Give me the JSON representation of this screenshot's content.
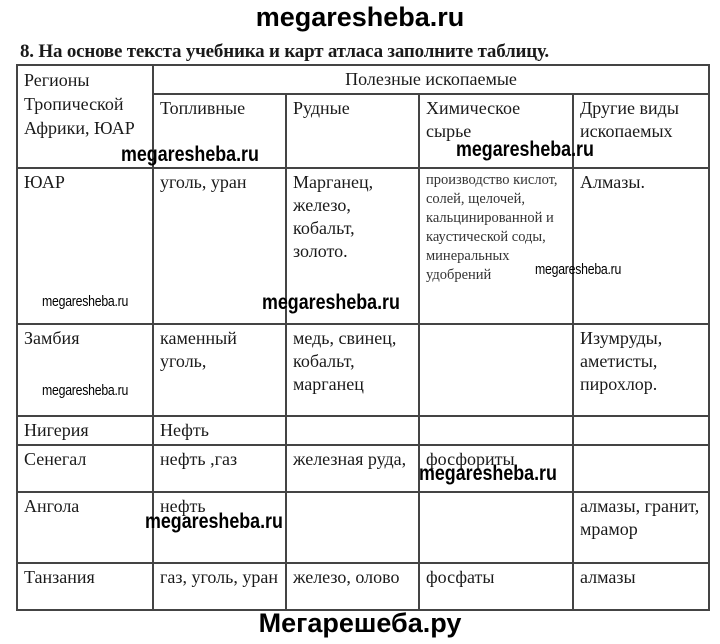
{
  "watermarks": {
    "top": "megaresheba.ru",
    "bottom": "Мегарешеба.ру",
    "inline": "megaresheba.ru"
  },
  "task": "8. На основе текста учебника и карт атласа заполните таблицу.",
  "table": {
    "region_header": "Регионы Тропической Африки, ЮАР",
    "group_header": "Полезные ископаемые",
    "columns": [
      "Топливные",
      "Рудные",
      "Химическое сырье",
      "Другие виды ископаемых"
    ],
    "rows": [
      {
        "region": "ЮАР",
        "fuel": "уголь, уран",
        "ore": "Марганец, железо, кобальт, золото.",
        "chemical": "производство кислот, солей, щелочей, кальцинированной и каустической соды, минеральных удобрений",
        "other": "Алмазы."
      },
      {
        "region": "Замбия",
        "fuel": "каменный уголь,",
        "ore": "медь, свинец, кобальт, марганец",
        "chemical": "",
        "other": "Изумруды, аметисты, пирохлор."
      },
      {
        "region": "Нигерия",
        "fuel": "Нефть",
        "ore": "",
        "chemical": "",
        "other": ""
      },
      {
        "region": "Сенегал",
        "fuel": "нефть ,газ",
        "ore": "железная руда,",
        "chemical": "фосфориты",
        "other": ""
      },
      {
        "region": "Ангола",
        "fuel": "нефть",
        "ore": "",
        "chemical": "",
        "other": "алмазы, гранит, мрамор"
      },
      {
        "region": "Танзания",
        "fuel": "газ, уголь, уран",
        "ore": "железо, олово",
        "chemical": "фосфаты",
        "other": "алмазы"
      }
    ]
  }
}
